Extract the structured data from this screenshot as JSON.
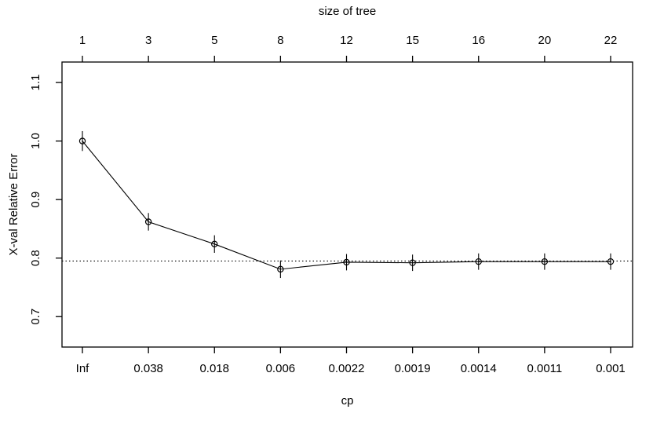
{
  "chart_data": {
    "type": "line",
    "top_axis_title": "size of tree",
    "xlabel": "cp",
    "ylabel": "X-val Relative Error",
    "x_tick_labels_bottom": [
      "Inf",
      "0.038",
      "0.018",
      "0.006",
      "0.0022",
      "0.0019",
      "0.0014",
      "0.0011",
      "0.001"
    ],
    "x_tick_labels_top": [
      "1",
      "3",
      "5",
      "8",
      "12",
      "15",
      "16",
      "20",
      "22"
    ],
    "y_tick_labels": [
      "1.1",
      "1.0",
      "0.9",
      "0.8",
      "0.7"
    ],
    "y_ticks": [
      1.1,
      1.0,
      0.9,
      0.8,
      0.7
    ],
    "ylim": [
      0.648,
      1.135
    ],
    "series": [
      {
        "name": "X-val Relative Error",
        "marker": "open-circle",
        "values": [
          1.0,
          0.862,
          0.824,
          0.781,
          0.793,
          0.792,
          0.794,
          0.794,
          0.794
        ],
        "error_bar_halfwidths": [
          0.017,
          0.015,
          0.015,
          0.015,
          0.014,
          0.014,
          0.014,
          0.014,
          0.014
        ]
      }
    ],
    "reference_line": {
      "y": 0.795,
      "style": "dotted"
    },
    "grid": false,
    "legend_position": "none",
    "background_color": "#ffffff",
    "foreground_color": "#000000"
  }
}
